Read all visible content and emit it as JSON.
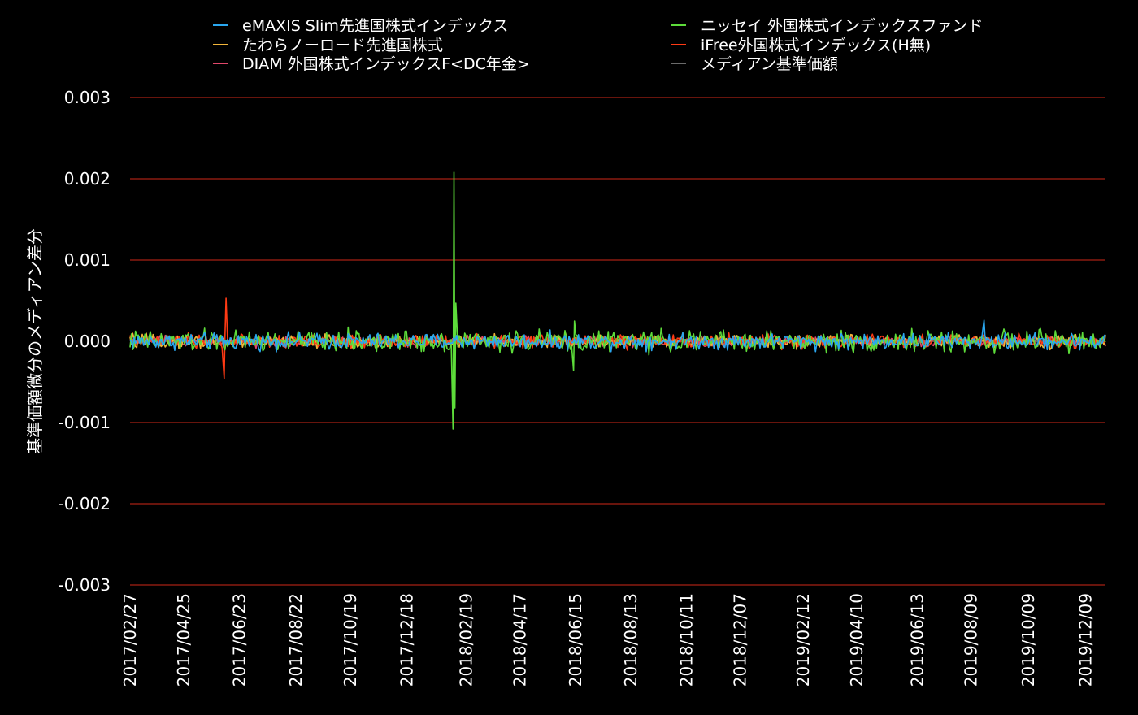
{
  "chart_data": {
    "type": "line",
    "ylabel": "基準価額微分のメディアン差分",
    "xlabel": "",
    "ylim": [
      -0.003,
      0.003
    ],
    "yticks": [
      "0.003",
      "0.002",
      "0.001",
      "0.000",
      "-0.001",
      "-0.002",
      "-0.003"
    ],
    "ytick_values": [
      0.003,
      0.002,
      0.001,
      0.0,
      -0.001,
      -0.002,
      -0.003
    ],
    "xticks": [
      "2017/02/27",
      "2017/04/25",
      "2017/06/23",
      "2017/08/22",
      "2017/10/19",
      "2017/12/18",
      "2018/02/19",
      "2018/04/17",
      "2018/06/15",
      "2018/08/13",
      "2018/10/11",
      "2018/12/07",
      "2019/02/12",
      "2019/04/10",
      "2019/06/13",
      "2019/08/09",
      "2019/10/09",
      "2019/12/09"
    ],
    "x_range": [
      "2017/02/27",
      "2019/12/30"
    ],
    "grid": "horizontal",
    "grid_color": "#8b1a10",
    "legend_position": "top",
    "series": [
      {
        "name": "eMAXIS Slim先進国株式インデックス",
        "color": "#2aa7f0",
        "noise": 6e-05,
        "spikes": [
          {
            "date": "2019/08/23",
            "value": 0.00026
          }
        ]
      },
      {
        "name": "ニッセイ 外国株式インデックスファンド",
        "color": "#5ddc3a",
        "noise": 8e-05,
        "spikes": [
          {
            "date": "2018/02/05",
            "value": -0.00108
          },
          {
            "date": "2018/02/06",
            "value": 0.00208
          },
          {
            "date": "2018/02/07",
            "value": -0.00082
          },
          {
            "date": "2018/02/08",
            "value": 0.00047
          },
          {
            "date": "2018/06/13",
            "value": -0.00036
          },
          {
            "date": "2018/06/14",
            "value": 0.00025
          }
        ]
      },
      {
        "name": "たわらノーロード先進国株式",
        "color": "#f2b53a",
        "noise": 5e-05,
        "spikes": []
      },
      {
        "name": "iFree外国株式インデックス(H無)",
        "color": "#ff3a14",
        "noise": 5e-05,
        "spikes": [
          {
            "date": "2017/06/07",
            "value": -0.00046
          },
          {
            "date": "2017/06/09",
            "value": 0.00053
          }
        ]
      },
      {
        "name": "DIAM 外国株式インデックスF<DC年金>",
        "color": "#e0476a",
        "noise": 4e-05,
        "spikes": []
      },
      {
        "name": "メディアン基準価額",
        "color": "#6a6a6a",
        "noise": 0.0,
        "spikes": []
      }
    ]
  }
}
